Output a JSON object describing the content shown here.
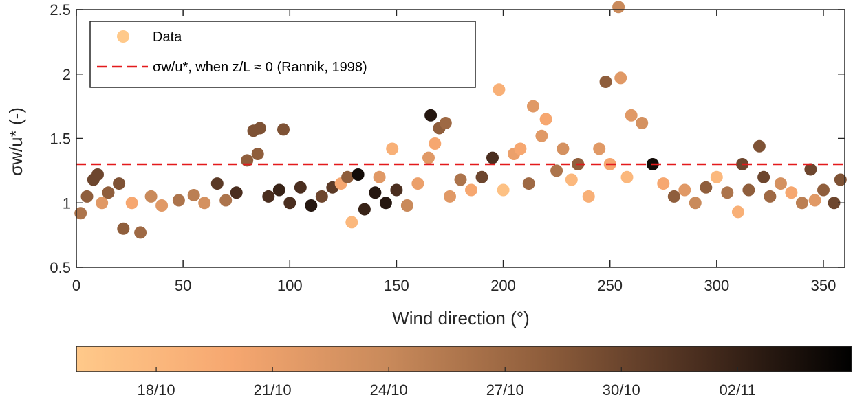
{
  "chart_data": {
    "type": "scatter",
    "xlabel": "Wind direction (°)",
    "ylabel": "σw/u* (-)",
    "xlim": [
      0,
      360
    ],
    "ylim": [
      0.5,
      2.5
    ],
    "xticks": [
      "0",
      "50",
      "100",
      "150",
      "200",
      "250",
      "300",
      "350"
    ],
    "yticks": [
      "0.5",
      "1",
      "1.5",
      "2",
      "2.5"
    ],
    "grid": false,
    "legend_placement": "top-left",
    "legend": {
      "data_label": "Data",
      "line_label": "σw/u*, when z/L ≈ 0 (Rannik, 1998)"
    },
    "reference_line": {
      "y": 1.3,
      "color": "#e31a1c",
      "style": "dashed"
    },
    "colorbar": {
      "labels": [
        "18/10",
        "21/10",
        "24/10",
        "27/10",
        "30/10",
        "02/11"
      ],
      "colors": [
        "#ffc98a",
        "#f6a770",
        "#c98a5b",
        "#8f5e3c",
        "#4a2e1f",
        "#000000"
      ]
    },
    "series": [
      {
        "points": [
          [
            2,
            0.92,
            0.5
          ],
          [
            5,
            1.05,
            0.6
          ],
          [
            8,
            1.18,
            0.7
          ],
          [
            10,
            1.22,
            0.7
          ],
          [
            12,
            1.0,
            0.3
          ],
          [
            15,
            1.08,
            0.6
          ],
          [
            20,
            1.15,
            0.65
          ],
          [
            22,
            0.8,
            0.6
          ],
          [
            26,
            1.0,
            0.2
          ],
          [
            30,
            0.77,
            0.55
          ],
          [
            35,
            1.05,
            0.4
          ],
          [
            40,
            0.98,
            0.3
          ],
          [
            48,
            1.02,
            0.5
          ],
          [
            55,
            1.06,
            0.45
          ],
          [
            60,
            1.0,
            0.35
          ],
          [
            66,
            1.15,
            0.75
          ],
          [
            70,
            1.02,
            0.5
          ],
          [
            75,
            1.08,
            0.8
          ],
          [
            80,
            1.33,
            0.6
          ],
          [
            83,
            1.56,
            0.65
          ],
          [
            85,
            1.38,
            0.6
          ],
          [
            86,
            1.58,
            0.65
          ],
          [
            90,
            1.05,
            0.8
          ],
          [
            95,
            1.1,
            0.85
          ],
          [
            97,
            1.57,
            0.65
          ],
          [
            100,
            1.0,
            0.8
          ],
          [
            105,
            1.12,
            0.8
          ],
          [
            110,
            0.98,
            0.9
          ],
          [
            115,
            1.05,
            0.7
          ],
          [
            120,
            1.12,
            0.75
          ],
          [
            124,
            1.15,
            0.2
          ],
          [
            127,
            1.2,
            0.6
          ],
          [
            129,
            0.85,
            0.1
          ],
          [
            132,
            1.22,
            0.95
          ],
          [
            135,
            0.95,
            0.85
          ],
          [
            140,
            1.08,
            0.9
          ],
          [
            142,
            1.2,
            0.3
          ],
          [
            145,
            1.0,
            0.9
          ],
          [
            148,
            1.42,
            0.15
          ],
          [
            150,
            1.1,
            0.8
          ],
          [
            155,
            0.98,
            0.4
          ],
          [
            160,
            1.15,
            0.25
          ],
          [
            165,
            1.35,
            0.3
          ],
          [
            166,
            1.68,
            0.9
          ],
          [
            168,
            1.46,
            0.2
          ],
          [
            170,
            1.58,
            0.6
          ],
          [
            173,
            1.62,
            0.55
          ],
          [
            175,
            1.05,
            0.3
          ],
          [
            180,
            1.18,
            0.5
          ],
          [
            185,
            1.1,
            0.2
          ],
          [
            190,
            1.2,
            0.7
          ],
          [
            195,
            1.35,
            0.8
          ],
          [
            198,
            1.88,
            0.15
          ],
          [
            200,
            1.1,
            0.05
          ],
          [
            205,
            1.38,
            0.25
          ],
          [
            208,
            1.42,
            0.2
          ],
          [
            212,
            1.15,
            0.55
          ],
          [
            214,
            1.75,
            0.3
          ],
          [
            218,
            1.52,
            0.3
          ],
          [
            220,
            1.65,
            0.2
          ],
          [
            225,
            1.25,
            0.5
          ],
          [
            228,
            1.42,
            0.35
          ],
          [
            232,
            1.18,
            0.1
          ],
          [
            235,
            1.3,
            0.6
          ],
          [
            240,
            1.05,
            0.15
          ],
          [
            245,
            1.42,
            0.3
          ],
          [
            248,
            1.94,
            0.6
          ],
          [
            250,
            1.3,
            0.2
          ],
          [
            254,
            2.52,
            0.4
          ],
          [
            255,
            1.97,
            0.3
          ],
          [
            258,
            1.2,
            0.1
          ],
          [
            260,
            1.68,
            0.3
          ],
          [
            265,
            1.62,
            0.35
          ],
          [
            270,
            1.3,
            0.95
          ],
          [
            275,
            1.15,
            0.2
          ],
          [
            280,
            1.05,
            0.6
          ],
          [
            285,
            1.1,
            0.3
          ],
          [
            290,
            1.0,
            0.4
          ],
          [
            295,
            1.12,
            0.6
          ],
          [
            300,
            1.2,
            0.1
          ],
          [
            305,
            1.08,
            0.5
          ],
          [
            310,
            0.93,
            0.15
          ],
          [
            312,
            1.3,
            0.7
          ],
          [
            315,
            1.1,
            0.6
          ],
          [
            320,
            1.44,
            0.65
          ],
          [
            322,
            1.2,
            0.7
          ],
          [
            325,
            1.05,
            0.55
          ],
          [
            330,
            1.15,
            0.35
          ],
          [
            335,
            1.08,
            0.2
          ],
          [
            340,
            1.0,
            0.45
          ],
          [
            344,
            1.26,
            0.7
          ],
          [
            346,
            1.02,
            0.3
          ],
          [
            350,
            1.1,
            0.6
          ],
          [
            355,
            1.0,
            0.7
          ],
          [
            358,
            1.18,
            0.65
          ]
        ]
      }
    ]
  }
}
